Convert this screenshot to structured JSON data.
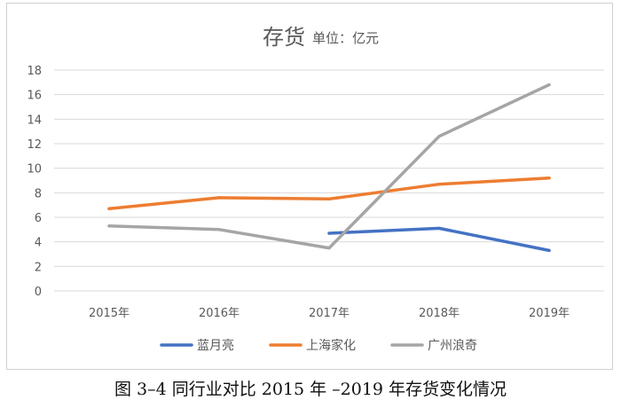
{
  "chart_data": {
    "type": "line",
    "title": "存货",
    "unit": "单位：亿元",
    "categories": [
      "2015年",
      "2016年",
      "2017年",
      "2018年",
      "2019年"
    ],
    "ylim": [
      0,
      18
    ],
    "yticks": [
      0,
      2,
      4,
      6,
      8,
      10,
      12,
      14,
      16,
      18
    ],
    "grid": true,
    "legend_position": "bottom",
    "series": [
      {
        "name": "蓝月亮",
        "color": "#4472C4",
        "values": [
          null,
          null,
          4.7,
          5.1,
          3.3
        ]
      },
      {
        "name": "上海家化",
        "color": "#ED7D31",
        "values": [
          6.7,
          7.6,
          7.5,
          8.7,
          9.2
        ]
      },
      {
        "name": "广州浪奇",
        "color": "#A5A5A5",
        "values": [
          5.3,
          5.0,
          3.5,
          12.6,
          16.8
        ]
      }
    ]
  },
  "caption": "图 3–4 同行业对比 2015 年 –2019 年存货变化情况"
}
